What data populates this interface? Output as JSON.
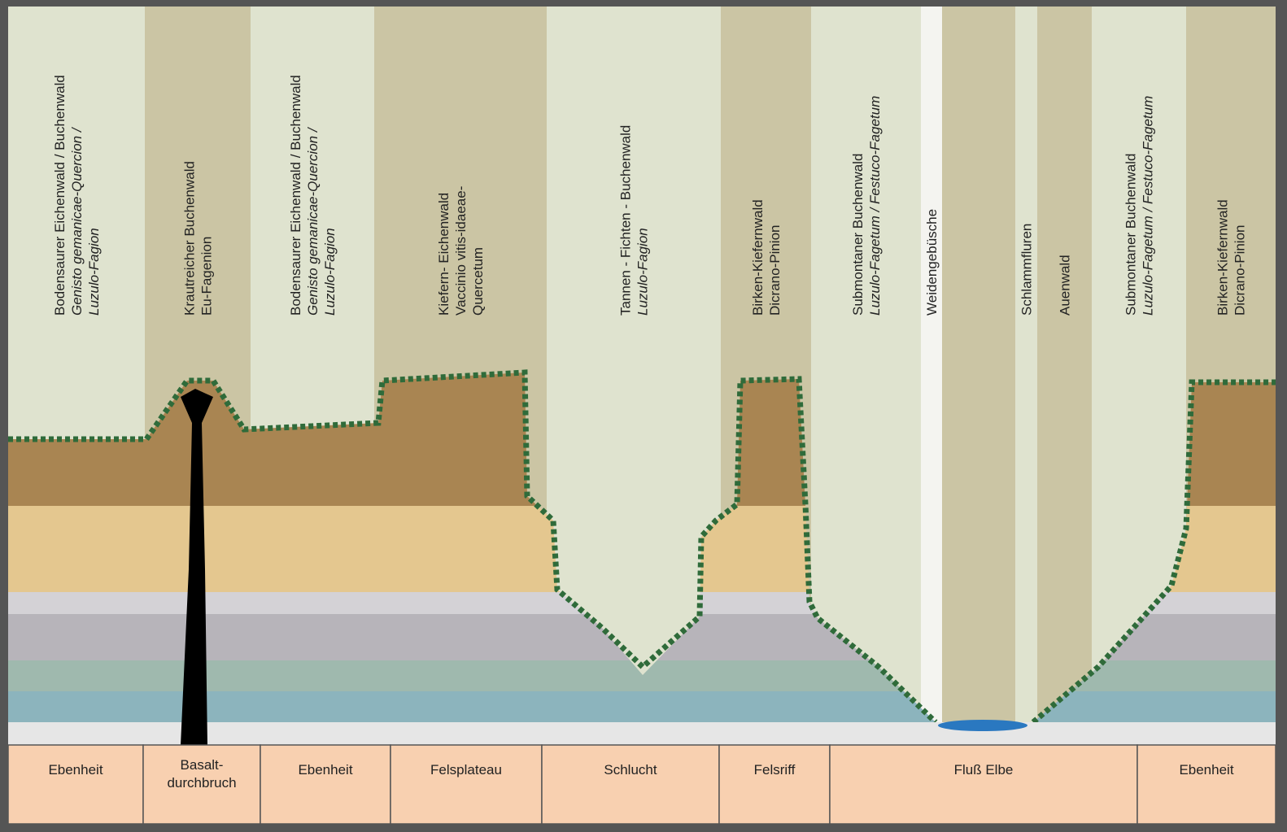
{
  "vegetation": [
    {
      "lines": [
        {
          "text": "Bodensaurer Eichenwald / Buchenwald",
          "italic": false
        },
        {
          "text": "Genisto gemanicae-Quercion /",
          "italic": true
        },
        {
          "text": "Luzulo-Fagion",
          "italic": true
        }
      ]
    },
    {
      "lines": [
        {
          "text": "Krautreicher Buchenwald",
          "italic": false
        },
        {
          "text": "Eu-Fagenion",
          "italic": false
        }
      ]
    },
    {
      "lines": [
        {
          "text": "Bodensaurer Eichenwald / Buchenwald",
          "italic": false
        },
        {
          "text": "Genisto gemanicae-Quercion /",
          "italic": true
        },
        {
          "text": "Luzulo-Fagion",
          "italic": true
        }
      ]
    },
    {
      "lines": [
        {
          "text": "Kiefern- Eichenwald",
          "italic": false
        },
        {
          "text": "Vaccinio vitis-idaeae-",
          "italic": false
        },
        {
          "text": "Quercetum",
          "italic": false
        }
      ]
    },
    {
      "lines": [
        {
          "text": "Tannen - Fichten - Buchenwald",
          "italic": false
        },
        {
          "text": "Luzulo-Fagion",
          "italic": true
        }
      ]
    },
    {
      "lines": [
        {
          "text": "Birken-Kiefernwald",
          "italic": false
        },
        {
          "text": "Dicrano-Pinion",
          "italic": false
        }
      ]
    },
    {
      "lines": [
        {
          "text": "Submontaner Buchenwald",
          "italic": false
        },
        {
          "text": "Luzulo-Fagetum / Festuco-Fagetum",
          "italic": true
        }
      ]
    },
    {
      "lines": [
        {
          "text": "Weidengebüsche",
          "italic": false
        }
      ]
    },
    {
      "lines": []
    },
    {
      "lines": [
        {
          "text": "Schlammfluren",
          "italic": false
        }
      ]
    },
    {
      "lines": [
        {
          "text": "Auenwald",
          "italic": false
        }
      ]
    },
    {
      "lines": [
        {
          "text": "Submontaner Buchenwald",
          "italic": false
        },
        {
          "text": "Luzulo-Fagetum / Festuco-Fagetum",
          "italic": true
        }
      ]
    },
    {
      "lines": [
        {
          "text": "Birken-Kiefernwald",
          "italic": false
        },
        {
          "text": "Dicrano-Pinion",
          "italic": false
        }
      ]
    }
  ],
  "landforms": [
    [
      "Ebenheit"
    ],
    [
      "Basalt-",
      "durchbruch"
    ],
    [
      "Ebenheit"
    ],
    [
      "Felsplateau"
    ],
    [
      "Schlucht"
    ],
    [
      "Felsriff"
    ],
    [
      "Fluß Elbe"
    ],
    [
      "Ebenheit"
    ]
  ]
}
